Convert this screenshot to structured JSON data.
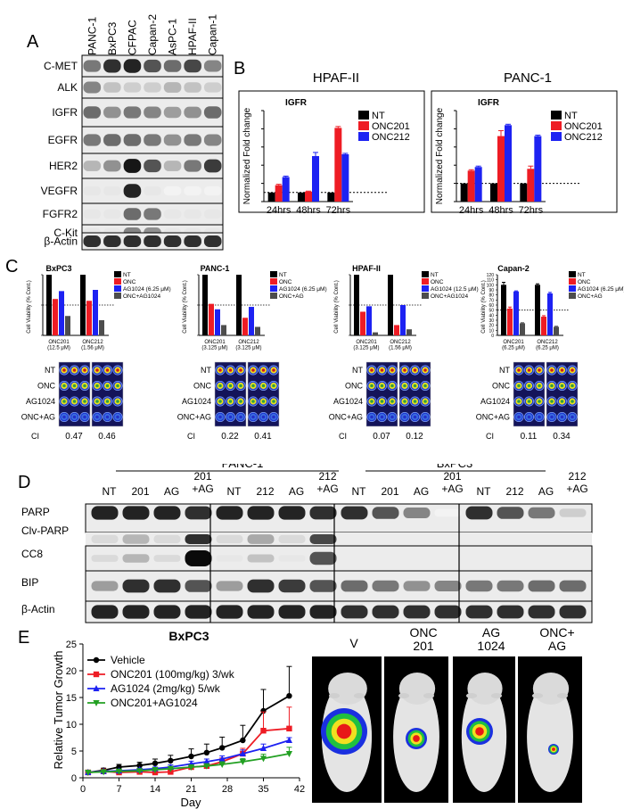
{
  "panels": {
    "A": "A",
    "B": "B",
    "C": "C",
    "D": "D",
    "E": "E"
  },
  "panelA": {
    "cell_lines": [
      "PANC-1",
      "BxPC3",
      "CFPAC",
      "Capan-2",
      "AsPC-1",
      "HPAF-II",
      "Capan-1"
    ],
    "proteins": [
      "C-MET",
      "ALK",
      "IGFR",
      "EGFR",
      "HER2",
      "VEGFR",
      "FGFR2",
      "C-Kit",
      "β-Actin"
    ],
    "intensity": [
      [
        0.55,
        0.85,
        0.9,
        0.7,
        0.6,
        0.75,
        0.5
      ],
      [
        0.5,
        0.25,
        0.2,
        0.2,
        0.3,
        0.25,
        0.2
      ],
      [
        0.6,
        0.45,
        0.55,
        0.5,
        0.4,
        0.45,
        0.6
      ],
      [
        0.55,
        0.6,
        0.6,
        0.55,
        0.45,
        0.55,
        0.5
      ],
      [
        0.3,
        0.45,
        0.95,
        0.7,
        0.3,
        0.55,
        0.8
      ],
      [
        0.1,
        0.1,
        0.9,
        0.1,
        0.05,
        0.05,
        0.05
      ],
      [
        0.1,
        0.1,
        0.6,
        0.55,
        0.1,
        0.1,
        0.1
      ],
      [
        0.1,
        0.1,
        0.5,
        0.45,
        0.1,
        0.1,
        0.1
      ],
      [
        0.85,
        0.85,
        0.85,
        0.85,
        0.85,
        0.85,
        0.85
      ]
    ]
  },
  "panelC": {
    "cis": [
      "0.47",
      "0.46",
      "0.22",
      "0.41",
      "0.07",
      "0.12",
      "0.11",
      "0.34"
    ],
    "ci_label": "CI",
    "plate_rows": [
      "NT",
      "ONC",
      "AG1024",
      "ONC+AG"
    ]
  },
  "panelD": {
    "groups": [
      "PANC-1",
      "BxPC3"
    ],
    "lanes": [
      "NT",
      "201",
      "AG",
      "201\n+AG",
      "NT",
      "212",
      "AG",
      "212\n+AG",
      "NT",
      "201",
      "AG",
      "201\n+AG",
      "NT",
      "212",
      "AG",
      "212\n+AG"
    ],
    "rows": [
      "PARP",
      "Clv-PARP",
      "CC8",
      "BIP",
      "β-Actin"
    ],
    "intensity": {
      "PARP": [
        0.9,
        0.9,
        0.9,
        0.85,
        0.9,
        0.9,
        0.9,
        0.85,
        0.85,
        0.7,
        0.5,
        0.05,
        0.85,
        0.7,
        0.55,
        0.2
      ],
      "Clv-PARP": [
        0.15,
        0.3,
        0.15,
        0.85,
        0.15,
        0.35,
        0.15,
        0.75,
        0,
        0,
        0,
        0,
        0,
        0,
        0,
        0
      ],
      "CC8": [
        0.15,
        0.3,
        0.15,
        1.0,
        0.1,
        0.25,
        0.1,
        0.7,
        0,
        0,
        0,
        0,
        0,
        0,
        0,
        0
      ],
      "BIP": [
        0.4,
        0.85,
        0.85,
        0.7,
        0.4,
        0.85,
        0.8,
        0.7,
        0.6,
        0.55,
        0.45,
        0.5,
        0.55,
        0.55,
        0.6,
        0.6
      ],
      "β-Actin": [
        0.9,
        0.9,
        0.9,
        0.9,
        0.9,
        0.9,
        0.9,
        0.9,
        0.85,
        0.85,
        0.85,
        0.85,
        0.85,
        0.85,
        0.85,
        0.85
      ]
    }
  },
  "panelE": {
    "mouse_labels": [
      "V",
      "ONC\n201",
      "AG\n1024",
      "ONC+\nAG"
    ]
  },
  "colors": {
    "NT": "#000000",
    "ONC": "#ee1c24",
    "ONC212": "#1d22f2",
    "combo": "#4d4d4d",
    "vehicle": "#000000",
    "onc201": "#ee1c24",
    "ag1024": "#1d22f2",
    "combo_e": "#22a022"
  },
  "chart_data": [
    {
      "id": "B-HPAF-II",
      "type": "bar",
      "panel_title": "HPAF-II",
      "title": "IGFR",
      "ylabel": "Normalized Fold change",
      "categories": [
        "24hrs",
        "48hrs",
        "72hrs"
      ],
      "series": [
        {
          "name": "NT",
          "values": [
            1,
            1,
            1
          ],
          "errors": [
            0,
            0,
            0
          ]
        },
        {
          "name": "ONC201",
          "values": [
            1.8,
            1.1,
            8.1
          ],
          "errors": [
            0.1,
            0.05,
            0.15
          ]
        },
        {
          "name": "ONC212",
          "values": [
            2.7,
            5.0,
            5.2
          ],
          "errors": [
            0.1,
            0.4,
            0.1
          ]
        }
      ],
      "ylim": [
        0,
        10
      ],
      "yticks": [
        0,
        2,
        4,
        6,
        8,
        10
      ],
      "reference_line": 1,
      "legend": "top-right"
    },
    {
      "id": "B-PANC-1",
      "type": "bar",
      "panel_title": "PANC-1",
      "title": "IGFR",
      "ylabel": "Normalized Fold change",
      "categories": [
        "24hrs",
        "48hrs",
        "72hrs"
      ],
      "series": [
        {
          "name": "NT",
          "values": [
            1,
            1,
            1
          ],
          "errors": [
            0,
            0,
            0
          ]
        },
        {
          "name": "ONC201",
          "values": [
            1.7,
            3.6,
            1.8
          ],
          "errors": [
            0.05,
            0.3,
            0.15
          ]
        },
        {
          "name": "ONC212",
          "values": [
            1.9,
            4.2,
            3.6
          ],
          "errors": [
            0.05,
            0.05,
            0.05
          ]
        }
      ],
      "ylim": [
        0,
        5
      ],
      "yticks": [
        0,
        1,
        2,
        3,
        4,
        5
      ],
      "reference_line": 1,
      "legend": "top-right"
    },
    {
      "id": "C-BxPC3",
      "type": "bar",
      "title": "BxPC3",
      "ylabel": "Cell Viability (% Cont.)",
      "categories": [
        "ONC201\n(12.5 μM)",
        "ONC212\n(1.56 μM)"
      ],
      "series": [
        {
          "name": "NT",
          "values": [
            100,
            100
          ]
        },
        {
          "name": "ONC",
          "values": [
            60,
            57
          ]
        },
        {
          "name": "AG1024 (6.25 μM)",
          "values": [
            73,
            75
          ]
        },
        {
          "name": "ONC+AG1024",
          "values": [
            32,
            25
          ]
        }
      ],
      "ylim": [
        0,
        100
      ],
      "reference_line": 50,
      "legend": "top-right"
    },
    {
      "id": "C-PANC-1",
      "type": "bar",
      "title": "PANC-1",
      "ylabel": "Cell Viability (% Cont.)",
      "categories": [
        "ONC201\n(3.125 μM)",
        "ONC212\n(3.125 μM)"
      ],
      "series": [
        {
          "name": "NT",
          "values": [
            100,
            100
          ]
        },
        {
          "name": "ONC",
          "values": [
            52,
            29
          ]
        },
        {
          "name": "AG1024 (6.25 μM)",
          "values": [
            43,
            47
          ]
        },
        {
          "name": "ONC+AG",
          "values": [
            17,
            14
          ]
        }
      ],
      "ylim": [
        0,
        100
      ],
      "reference_line": 50,
      "legend": "top-right"
    },
    {
      "id": "C-HPAF-II",
      "type": "bar",
      "title": "HPAF-II",
      "ylabel": "Cell Viability (% Cont.)",
      "categories": [
        "ONC201\n(3.125 μM)",
        "ONC212\n(1.56 μM)"
      ],
      "series": [
        {
          "name": "NT",
          "values": [
            100,
            100
          ]
        },
        {
          "name": "ONC",
          "values": [
            39,
            17
          ]
        },
        {
          "name": "AG1024 (12.5 μM)",
          "values": [
            48,
            50
          ]
        },
        {
          "name": "ONC+AG1024",
          "values": [
            5,
            10
          ]
        }
      ],
      "ylim": [
        0,
        100
      ],
      "reference_line": 50,
      "legend": "top-right"
    },
    {
      "id": "C-Capan-2",
      "type": "bar",
      "title": "Capan-2",
      "ylabel": "Cell Viability (% Cont.)",
      "categories": [
        "ONC201\n(6.25 μM)",
        "ONC212\n(6.25 μM)"
      ],
      "series": [
        {
          "name": "NT",
          "values": [
            100,
            100
          ],
          "errors": [
            5,
            2
          ]
        },
        {
          "name": "ONC",
          "values": [
            53,
            37
          ],
          "errors": [
            3,
            2
          ]
        },
        {
          "name": "AG1024 (6.25 μM)",
          "values": [
            87,
            83
          ],
          "errors": [
            1,
            2
          ]
        },
        {
          "name": "ONC+AG",
          "values": [
            24,
            17
          ],
          "errors": [
            1,
            1
          ]
        }
      ],
      "ylim": [
        0,
        120
      ],
      "yticks": [
        0,
        10,
        20,
        30,
        40,
        50,
        60,
        70,
        80,
        90,
        100,
        110,
        120
      ],
      "reference_line": 50,
      "legend": "top-right"
    },
    {
      "id": "E-BxPC3",
      "type": "line",
      "title": "BxPC3",
      "xlabel": "Day",
      "ylabel": "Relative Tumor Growth",
      "x": [
        1,
        4,
        7,
        11,
        14,
        17,
        21,
        24,
        27,
        31,
        35,
        40
      ],
      "series": [
        {
          "name": "Vehicle",
          "values": [
            1.0,
            1.4,
            2.0,
            2.3,
            2.7,
            3.2,
            4.0,
            4.7,
            5.6,
            7.0,
            12.5,
            15.3
          ],
          "errors": [
            0.3,
            0.4,
            0.5,
            0.6,
            0.8,
            1.0,
            1.4,
            1.6,
            2.0,
            2.8,
            4.0,
            5.5
          ]
        },
        {
          "name": "ONC201 (100mg/kg) 3/wk",
          "values": [
            1.0,
            1.2,
            1.0,
            1.1,
            1.0,
            1.1,
            2.0,
            2.2,
            3.0,
            4.5,
            8.8,
            9.2
          ],
          "errors": [
            0.2,
            0.2,
            0.2,
            0.2,
            0.2,
            0.3,
            0.4,
            0.5,
            0.7,
            1.0,
            3.5,
            4.0
          ]
        },
        {
          "name": "AG1024 (2mg/kg) 5/wk",
          "values": [
            1.0,
            1.2,
            1.3,
            1.5,
            1.7,
            2.0,
            2.6,
            3.0,
            3.5,
            4.5,
            5.5,
            7.0
          ],
          "errors": [
            0.2,
            0.2,
            0.3,
            0.3,
            0.3,
            0.4,
            0.5,
            0.5,
            0.6,
            0.7,
            0.8,
            0.5
          ]
        },
        {
          "name": "ONC201+AG1024",
          "values": [
            1.0,
            1.1,
            1.2,
            1.3,
            1.5,
            1.7,
            2.0,
            2.2,
            2.5,
            3.0,
            3.6,
            4.5
          ],
          "errors": [
            0.2,
            0.2,
            0.2,
            0.3,
            0.3,
            0.3,
            0.4,
            0.4,
            0.5,
            0.6,
            0.8,
            1.2
          ]
        }
      ],
      "xlim": [
        0,
        42
      ],
      "ylim": [
        0,
        25
      ],
      "xticks": [
        0,
        7,
        14,
        21,
        28,
        35,
        42
      ],
      "yticks": [
        0,
        5,
        10,
        15,
        20,
        25
      ],
      "legend": "top-left"
    }
  ]
}
